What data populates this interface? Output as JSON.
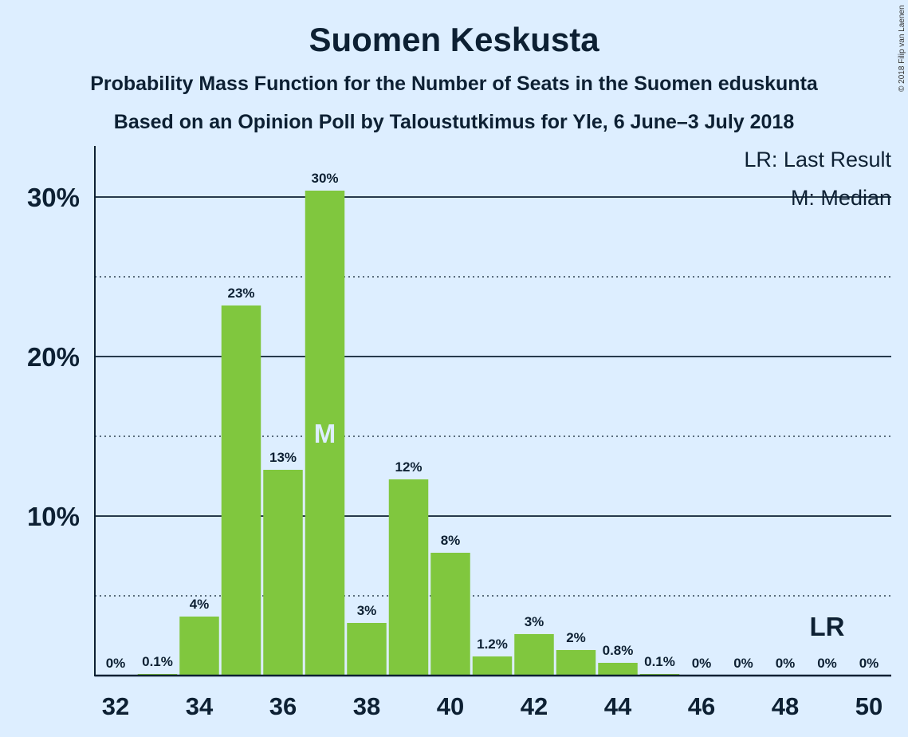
{
  "chart_data": {
    "type": "bar",
    "title": "Suomen Keskusta",
    "subtitle": "Probability Mass Function for the Number of Seats in the Suomen eduskunta",
    "source": "Based on an Opinion Poll by Taloustutkimus for Yle, 6 June–3 July 2018",
    "copyright": "© 2018 Filip van Laenen",
    "categories": [
      32,
      33,
      34,
      35,
      36,
      37,
      38,
      39,
      40,
      41,
      42,
      43,
      44,
      45,
      46,
      47,
      48,
      49,
      50
    ],
    "values": [
      0,
      0.1,
      3.7,
      23.2,
      12.9,
      30.4,
      3.3,
      12.3,
      7.7,
      1.2,
      2.6,
      1.6,
      0.8,
      0.1,
      0,
      0,
      0,
      0,
      0
    ],
    "value_labels": [
      "0%",
      "0.1%",
      "4%",
      "23%",
      "13%",
      "30%",
      "3%",
      "12%",
      "8%",
      "1.2%",
      "3%",
      "2%",
      "0.8%",
      "0.1%",
      "0%",
      "0%",
      "0%",
      "0%",
      "0%"
    ],
    "x_tick_labels": [
      "32",
      "34",
      "36",
      "38",
      "40",
      "42",
      "44",
      "46",
      "48",
      "50"
    ],
    "x_ticks": [
      32,
      34,
      36,
      38,
      40,
      42,
      44,
      46,
      48,
      50
    ],
    "y_tick_labels": [
      "10%",
      "20%",
      "30%"
    ],
    "y_ticks": [
      10,
      20,
      30
    ],
    "ylim": [
      0,
      33.2
    ],
    "median": 37,
    "median_marker": "M",
    "last_result": 49,
    "last_result_marker": "LR",
    "legend": [
      "LR: Last Result",
      "M: Median"
    ],
    "legend_position": "top-right",
    "bar_color": "#80c73e",
    "background": "#ddeeff"
  }
}
